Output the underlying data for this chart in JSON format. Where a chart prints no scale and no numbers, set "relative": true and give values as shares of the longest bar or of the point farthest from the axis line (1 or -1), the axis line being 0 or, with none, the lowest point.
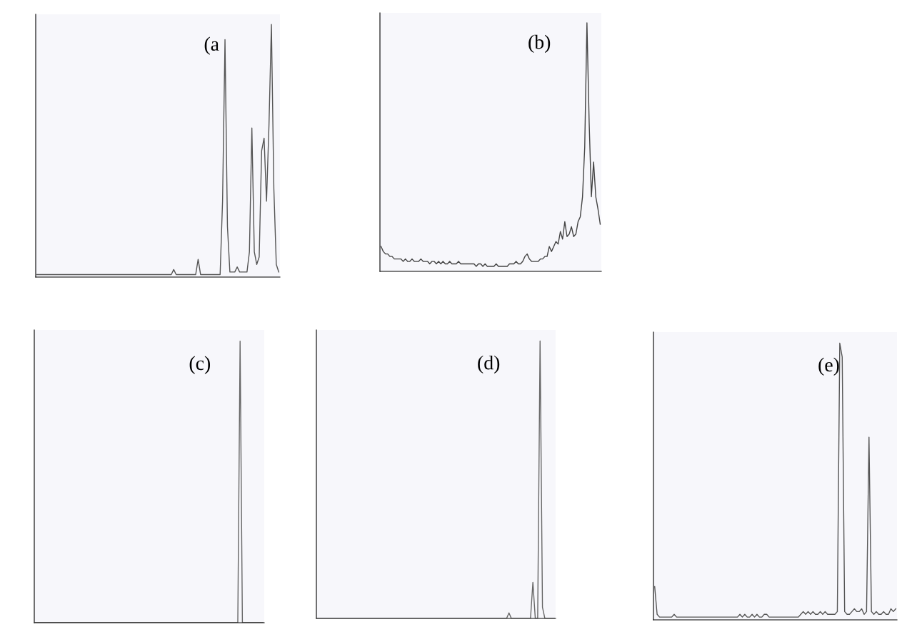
{
  "chart_data": [
    {
      "type": "line",
      "relative": true,
      "tick_labels": false,
      "color": "#555555",
      "annotations": [
        "(a"
      ],
      "categories": [
        null,
        null,
        null,
        null,
        null,
        null,
        null,
        null,
        null,
        null,
        null,
        null,
        null,
        null,
        null,
        null,
        null,
        null,
        null,
        null,
        null,
        null,
        null,
        null,
        null,
        null,
        null,
        null,
        null,
        null,
        null,
        null,
        null,
        null,
        null,
        null,
        null,
        null,
        null,
        null,
        null,
        null,
        null,
        null,
        null,
        null,
        null,
        null,
        null,
        null,
        null,
        null,
        null,
        null,
        null,
        null,
        null,
        null,
        null,
        null,
        null,
        null,
        null,
        null,
        null,
        null,
        null,
        null,
        null,
        null,
        null,
        null,
        null,
        null,
        null,
        null,
        null,
        null,
        null,
        null,
        null,
        null,
        null,
        null,
        null,
        null,
        null,
        null,
        null,
        null,
        null,
        null,
        null,
        null,
        null,
        null,
        null,
        null,
        null,
        null
      ],
      "values": [
        0.01,
        0.01,
        0.01,
        0.01,
        0.01,
        0.01,
        0.01,
        0.01,
        0.01,
        0.01,
        0.01,
        0.01,
        0.01,
        0.01,
        0.01,
        0.01,
        0.01,
        0.01,
        0.01,
        0.01,
        0.01,
        0.01,
        0.01,
        0.01,
        0.01,
        0.01,
        0.01,
        0.01,
        0.01,
        0.01,
        0.01,
        0.01,
        0.01,
        0.01,
        0.01,
        0.01,
        0.01,
        0.01,
        0.01,
        0.01,
        0.01,
        0.01,
        0.01,
        0.01,
        0.01,
        0.01,
        0.01,
        0.01,
        0.01,
        0.01,
        0.01,
        0.01,
        0.01,
        0.01,
        0.01,
        0.01,
        0.03,
        0.01,
        0.01,
        0.01,
        0.01,
        0.01,
        0.01,
        0.01,
        0.01,
        0.01,
        0.07,
        0.01,
        0.01,
        0.01,
        0.01,
        0.01,
        0.01,
        0.01,
        0.01,
        0.01,
        0.3,
        0.94,
        0.2,
        0.02,
        0.02,
        0.02,
        0.04,
        0.02,
        0.02,
        0.02,
        0.02,
        0.1,
        0.59,
        0.1,
        0.05,
        0.08,
        0.5,
        0.55,
        0.3,
        0.6,
        1,
        0.35,
        0.05,
        0.02
      ]
    },
    {
      "type": "line",
      "relative": true,
      "tick_labels": false,
      "color": "#444444",
      "annotations": [
        "(b)"
      ],
      "categories": [
        null,
        null,
        null,
        null,
        null,
        null,
        null,
        null,
        null,
        null,
        null,
        null,
        null,
        null,
        null,
        null,
        null,
        null,
        null,
        null,
        null,
        null,
        null,
        null,
        null,
        null,
        null,
        null,
        null,
        null,
        null,
        null,
        null,
        null,
        null,
        null,
        null,
        null,
        null,
        null,
        null,
        null,
        null,
        null,
        null,
        null,
        null,
        null,
        null,
        null,
        null,
        null,
        null,
        null,
        null,
        null,
        null,
        null,
        null,
        null,
        null,
        null,
        null,
        null,
        null,
        null,
        null,
        null,
        null,
        null,
        null,
        null,
        null,
        null,
        null,
        null,
        null,
        null,
        null,
        null,
        null,
        null,
        null,
        null,
        null,
        null,
        null,
        null,
        null,
        null,
        null,
        null,
        null,
        null,
        null,
        null,
        null,
        null,
        null,
        null
      ],
      "values": [
        0.1,
        0.08,
        0.07,
        0.07,
        0.06,
        0.06,
        0.05,
        0.05,
        0.05,
        0.05,
        0.04,
        0.05,
        0.04,
        0.04,
        0.05,
        0.04,
        0.04,
        0.04,
        0.05,
        0.04,
        0.04,
        0.04,
        0.03,
        0.04,
        0.04,
        0.03,
        0.04,
        0.03,
        0.04,
        0.03,
        0.03,
        0.04,
        0.03,
        0.03,
        0.03,
        0.04,
        0.03,
        0.03,
        0.03,
        0.03,
        0.03,
        0.03,
        0.03,
        0.02,
        0.03,
        0.03,
        0.02,
        0.03,
        0.02,
        0.02,
        0.02,
        0.02,
        0.03,
        0.02,
        0.02,
        0.02,
        0.02,
        0.02,
        0.03,
        0.03,
        0.03,
        0.04,
        0.03,
        0.03,
        0.04,
        0.06,
        0.07,
        0.05,
        0.04,
        0.04,
        0.04,
        0.04,
        0.05,
        0.05,
        0.06,
        0.06,
        0.1,
        0.08,
        0.1,
        0.12,
        0.11,
        0.16,
        0.13,
        0.2,
        0.14,
        0.15,
        0.18,
        0.14,
        0.15,
        0.2,
        0.22,
        0.3,
        0.5,
        1,
        0.6,
        0.3,
        0.44,
        0.3,
        0.25,
        0.19
      ]
    },
    {
      "type": "line",
      "relative": true,
      "tick_labels": false,
      "color": "#666666",
      "annotations": [
        "(c)"
      ],
      "categories": [
        null,
        null,
        null,
        null,
        null,
        null,
        null,
        null,
        null,
        null,
        null,
        null,
        null,
        null,
        null,
        null,
        null,
        null,
        null,
        null,
        null,
        null,
        null,
        null,
        null,
        null,
        null,
        null,
        null,
        null,
        null,
        null,
        null,
        null,
        null,
        null,
        null,
        null,
        null,
        null,
        null,
        null,
        null,
        null,
        null,
        null,
        null,
        null,
        null,
        null,
        null,
        null,
        null,
        null,
        null,
        null,
        null,
        null,
        null,
        null,
        null,
        null,
        null,
        null,
        null,
        null,
        null,
        null,
        null,
        null,
        null,
        null,
        null,
        null,
        null,
        null,
        null,
        null,
        null,
        null,
        null,
        null,
        null,
        null,
        null,
        null,
        null,
        null,
        null,
        null,
        null,
        null,
        null,
        null,
        null,
        null,
        null,
        null,
        null,
        null
      ],
      "values": [
        0,
        0,
        0,
        0,
        0,
        0,
        0,
        0,
        0,
        0,
        0,
        0,
        0,
        0,
        0,
        0,
        0,
        0,
        0,
        0,
        0,
        0,
        0,
        0,
        0,
        0,
        0,
        0,
        0,
        0,
        0,
        0,
        0,
        0,
        0,
        0,
        0,
        0,
        0,
        0,
        0,
        0,
        0,
        0,
        0,
        0,
        0,
        0,
        0,
        0,
        0,
        0,
        0,
        0,
        0,
        0,
        0,
        0,
        0,
        0,
        0,
        0,
        0,
        0,
        0,
        0,
        0,
        0,
        0,
        0,
        0,
        0,
        0,
        0,
        0,
        0,
        0,
        0,
        0,
        0,
        0,
        0,
        0,
        0,
        0,
        0,
        0,
        0,
        0,
        1,
        0,
        0,
        0,
        0,
        0,
        0,
        0,
        0,
        0,
        0
      ]
    },
    {
      "type": "line",
      "relative": true,
      "tick_labels": false,
      "color": "#666666",
      "annotations": [
        "(d)"
      ],
      "categories": [
        null,
        null,
        null,
        null,
        null,
        null,
        null,
        null,
        null,
        null,
        null,
        null,
        null,
        null,
        null,
        null,
        null,
        null,
        null,
        null,
        null,
        null,
        null,
        null,
        null,
        null,
        null,
        null,
        null,
        null,
        null,
        null,
        null,
        null,
        null,
        null,
        null,
        null,
        null,
        null,
        null,
        null,
        null,
        null,
        null,
        null,
        null,
        null,
        null,
        null,
        null,
        null,
        null,
        null,
        null,
        null,
        null,
        null,
        null,
        null,
        null,
        null,
        null,
        null,
        null,
        null,
        null,
        null,
        null,
        null,
        null,
        null,
        null,
        null,
        null,
        null,
        null,
        null,
        null,
        null,
        null,
        null,
        null,
        null,
        null,
        null,
        null,
        null,
        null,
        null,
        null,
        null,
        null,
        null,
        null,
        null,
        null,
        null,
        null,
        null
      ],
      "values": [
        0,
        0,
        0,
        0,
        0,
        0,
        0,
        0,
        0,
        0,
        0,
        0,
        0,
        0,
        0,
        0,
        0,
        0,
        0,
        0,
        0,
        0,
        0,
        0,
        0,
        0,
        0,
        0,
        0,
        0,
        0,
        0,
        0,
        0,
        0,
        0,
        0,
        0,
        0,
        0,
        0,
        0,
        0,
        0,
        0,
        0,
        0,
        0,
        0,
        0,
        0,
        0,
        0,
        0,
        0,
        0,
        0,
        0,
        0,
        0,
        0,
        0,
        0,
        0,
        0,
        0,
        0,
        0,
        0,
        0,
        0,
        0,
        0,
        0,
        0,
        0,
        0,
        0,
        0,
        0,
        0.02,
        0,
        0,
        0,
        0,
        0,
        0,
        0,
        0,
        0,
        0.13,
        0,
        0,
        1,
        0.04,
        0,
        0,
        0,
        0,
        0
      ]
    },
    {
      "type": "line",
      "relative": true,
      "tick_labels": false,
      "color": "#555555",
      "annotations": [
        "(e)"
      ],
      "categories": [
        null,
        null,
        null,
        null,
        null,
        null,
        null,
        null,
        null,
        null,
        null,
        null,
        null,
        null,
        null,
        null,
        null,
        null,
        null,
        null,
        null,
        null,
        null,
        null,
        null,
        null,
        null,
        null,
        null,
        null,
        null,
        null,
        null,
        null,
        null,
        null,
        null,
        null,
        null,
        null,
        null,
        null,
        null,
        null,
        null,
        null,
        null,
        null,
        null,
        null,
        null,
        null,
        null,
        null,
        null,
        null,
        null,
        null,
        null,
        null,
        null,
        null,
        null,
        null,
        null,
        null,
        null,
        null,
        null,
        null,
        null,
        null,
        null,
        null,
        null,
        null,
        null,
        null,
        null,
        null,
        null,
        null,
        null,
        null,
        null,
        null,
        null,
        null,
        null,
        null,
        null,
        null,
        null,
        null,
        null,
        null,
        null,
        null,
        null,
        null
      ],
      "values": [
        0.12,
        0.02,
        0.01,
        0.01,
        0.01,
        0.01,
        0.01,
        0.01,
        0.02,
        0.01,
        0.01,
        0.01,
        0.01,
        0.01,
        0.01,
        0.01,
        0.01,
        0.01,
        0.01,
        0.01,
        0.01,
        0.01,
        0.01,
        0.01,
        0.01,
        0.01,
        0.01,
        0.01,
        0.01,
        0.01,
        0.01,
        0.01,
        0.01,
        0.01,
        0.01,
        0.02,
        0.01,
        0.02,
        0.01,
        0.01,
        0.02,
        0.01,
        0.02,
        0.01,
        0.01,
        0.02,
        0.02,
        0.01,
        0.01,
        0.01,
        0.01,
        0.01,
        0.01,
        0.01,
        0.01,
        0.01,
        0.01,
        0.01,
        0.01,
        0.01,
        0.02,
        0.03,
        0.02,
        0.03,
        0.02,
        0.03,
        0.02,
        0.02,
        0.03,
        0.02,
        0.03,
        0.02,
        0.02,
        0.02,
        0.02,
        0.03,
        1,
        0.95,
        0.03,
        0.02,
        0.02,
        0.03,
        0.04,
        0.03,
        0.03,
        0.04,
        0.02,
        0.03,
        0.66,
        0.03,
        0.02,
        0.03,
        0.02,
        0.02,
        0.03,
        0.02,
        0.02,
        0.04,
        0.03,
        0.04
      ]
    }
  ]
}
